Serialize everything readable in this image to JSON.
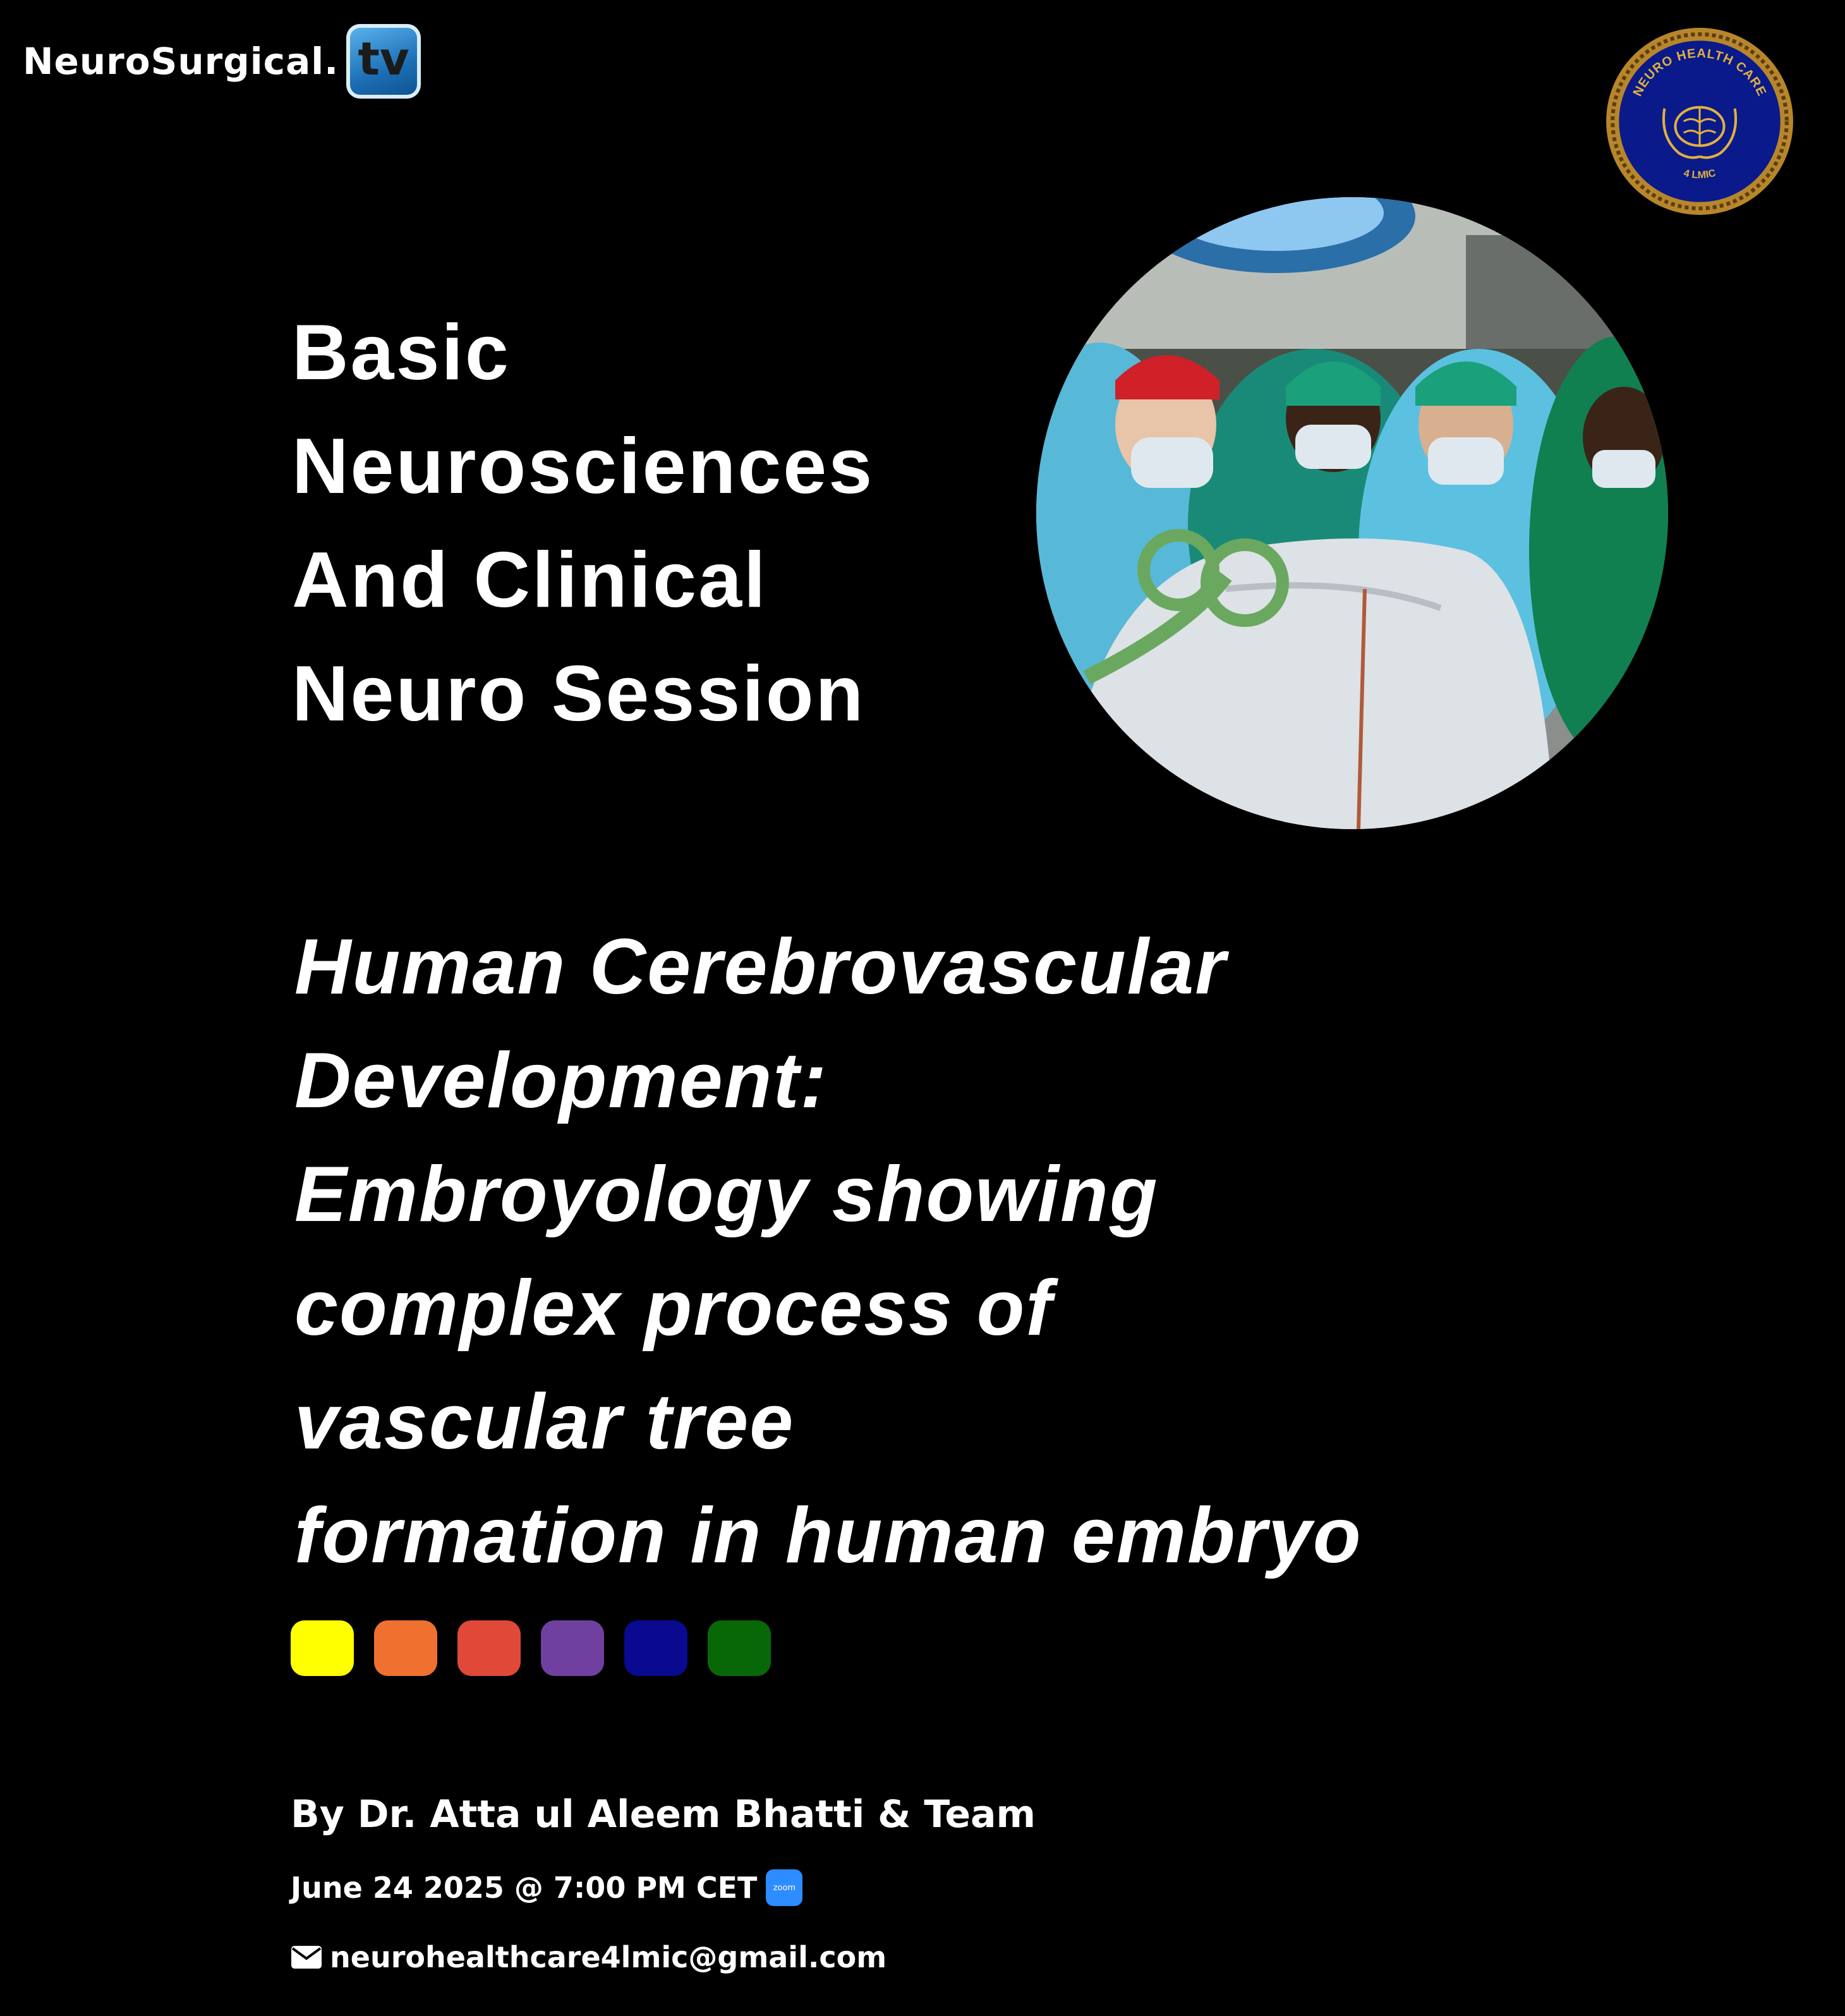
{
  "header": {
    "brand_text": "NeuroSurgical.",
    "brand_badge": "tv",
    "seal_text_top": "NEURO HEALTH CARE",
    "seal_text_bottom": "4 LMIC"
  },
  "session": {
    "title_lines": [
      "Basic",
      "Neurosciences",
      "And Clinical",
      "Neuro Session"
    ],
    "topic_lines": [
      "Human Cerebrovascular",
      "Development:",
      "Embroyology showing",
      "complex process of",
      "vascular tree",
      "formation in human embryo"
    ]
  },
  "swatch_colors": [
    "#ffff00",
    "#f07030",
    "#e04838",
    "#7040a0",
    "#0a0a90",
    "#086808"
  ],
  "footer": {
    "author": "By Dr. Atta ul Aleem Bhatti & Team",
    "date": "June 24 2025 @ 7:00 PM CET",
    "zoom_label": "zoom",
    "email": "neurohealthcare4lmic@gmail.com"
  },
  "icons": {
    "photo": "surgeons-operating-photo",
    "seal": "neuro-health-care-seal",
    "zoom": "zoom-icon",
    "mail": "envelope-icon"
  }
}
